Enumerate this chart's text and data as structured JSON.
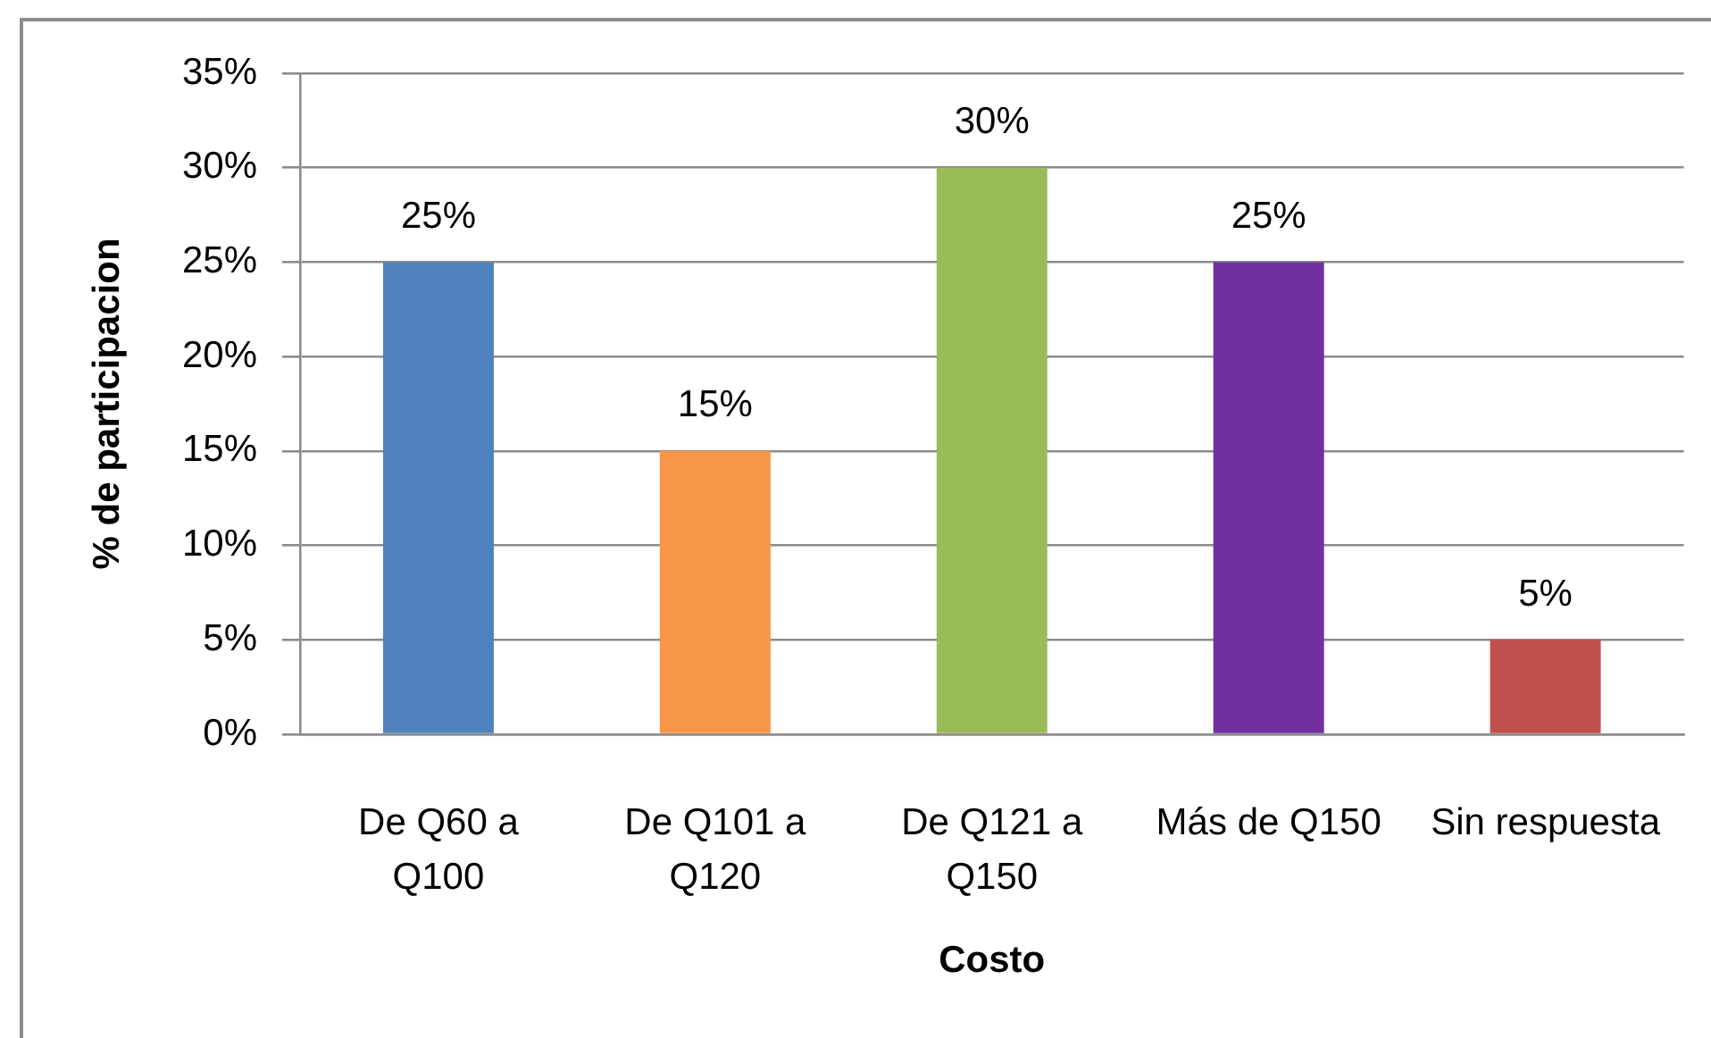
{
  "chart_data": {
    "type": "bar",
    "xlabel": "Costo",
    "ylabel": "% de participacion",
    "categories": [
      "De Q60 a Q100",
      "De Q101 a Q120",
      "De Q121 a Q150",
      "Más de Q150",
      "Sin respuesta"
    ],
    "values": [
      25,
      15,
      30,
      25,
      5
    ],
    "colors": [
      "#4f81bd",
      "#f79646",
      "#9bbb59",
      "#7030a0",
      "#c0504d"
    ],
    "value_labels": [
      "25%",
      "15%",
      "30%",
      "25%",
      "5%"
    ],
    "ylim": [
      0,
      35
    ],
    "yticks": [
      {
        "value": 0,
        "label": "0%"
      },
      {
        "value": 5,
        "label": "5%"
      },
      {
        "value": 10,
        "label": "10%"
      },
      {
        "value": 15,
        "label": "15%"
      },
      {
        "value": 20,
        "label": "20%"
      },
      {
        "value": 25,
        "label": "25%"
      },
      {
        "value": 30,
        "label": "30%"
      },
      {
        "value": 35,
        "label": "35%"
      }
    ],
    "grid": "y"
  }
}
